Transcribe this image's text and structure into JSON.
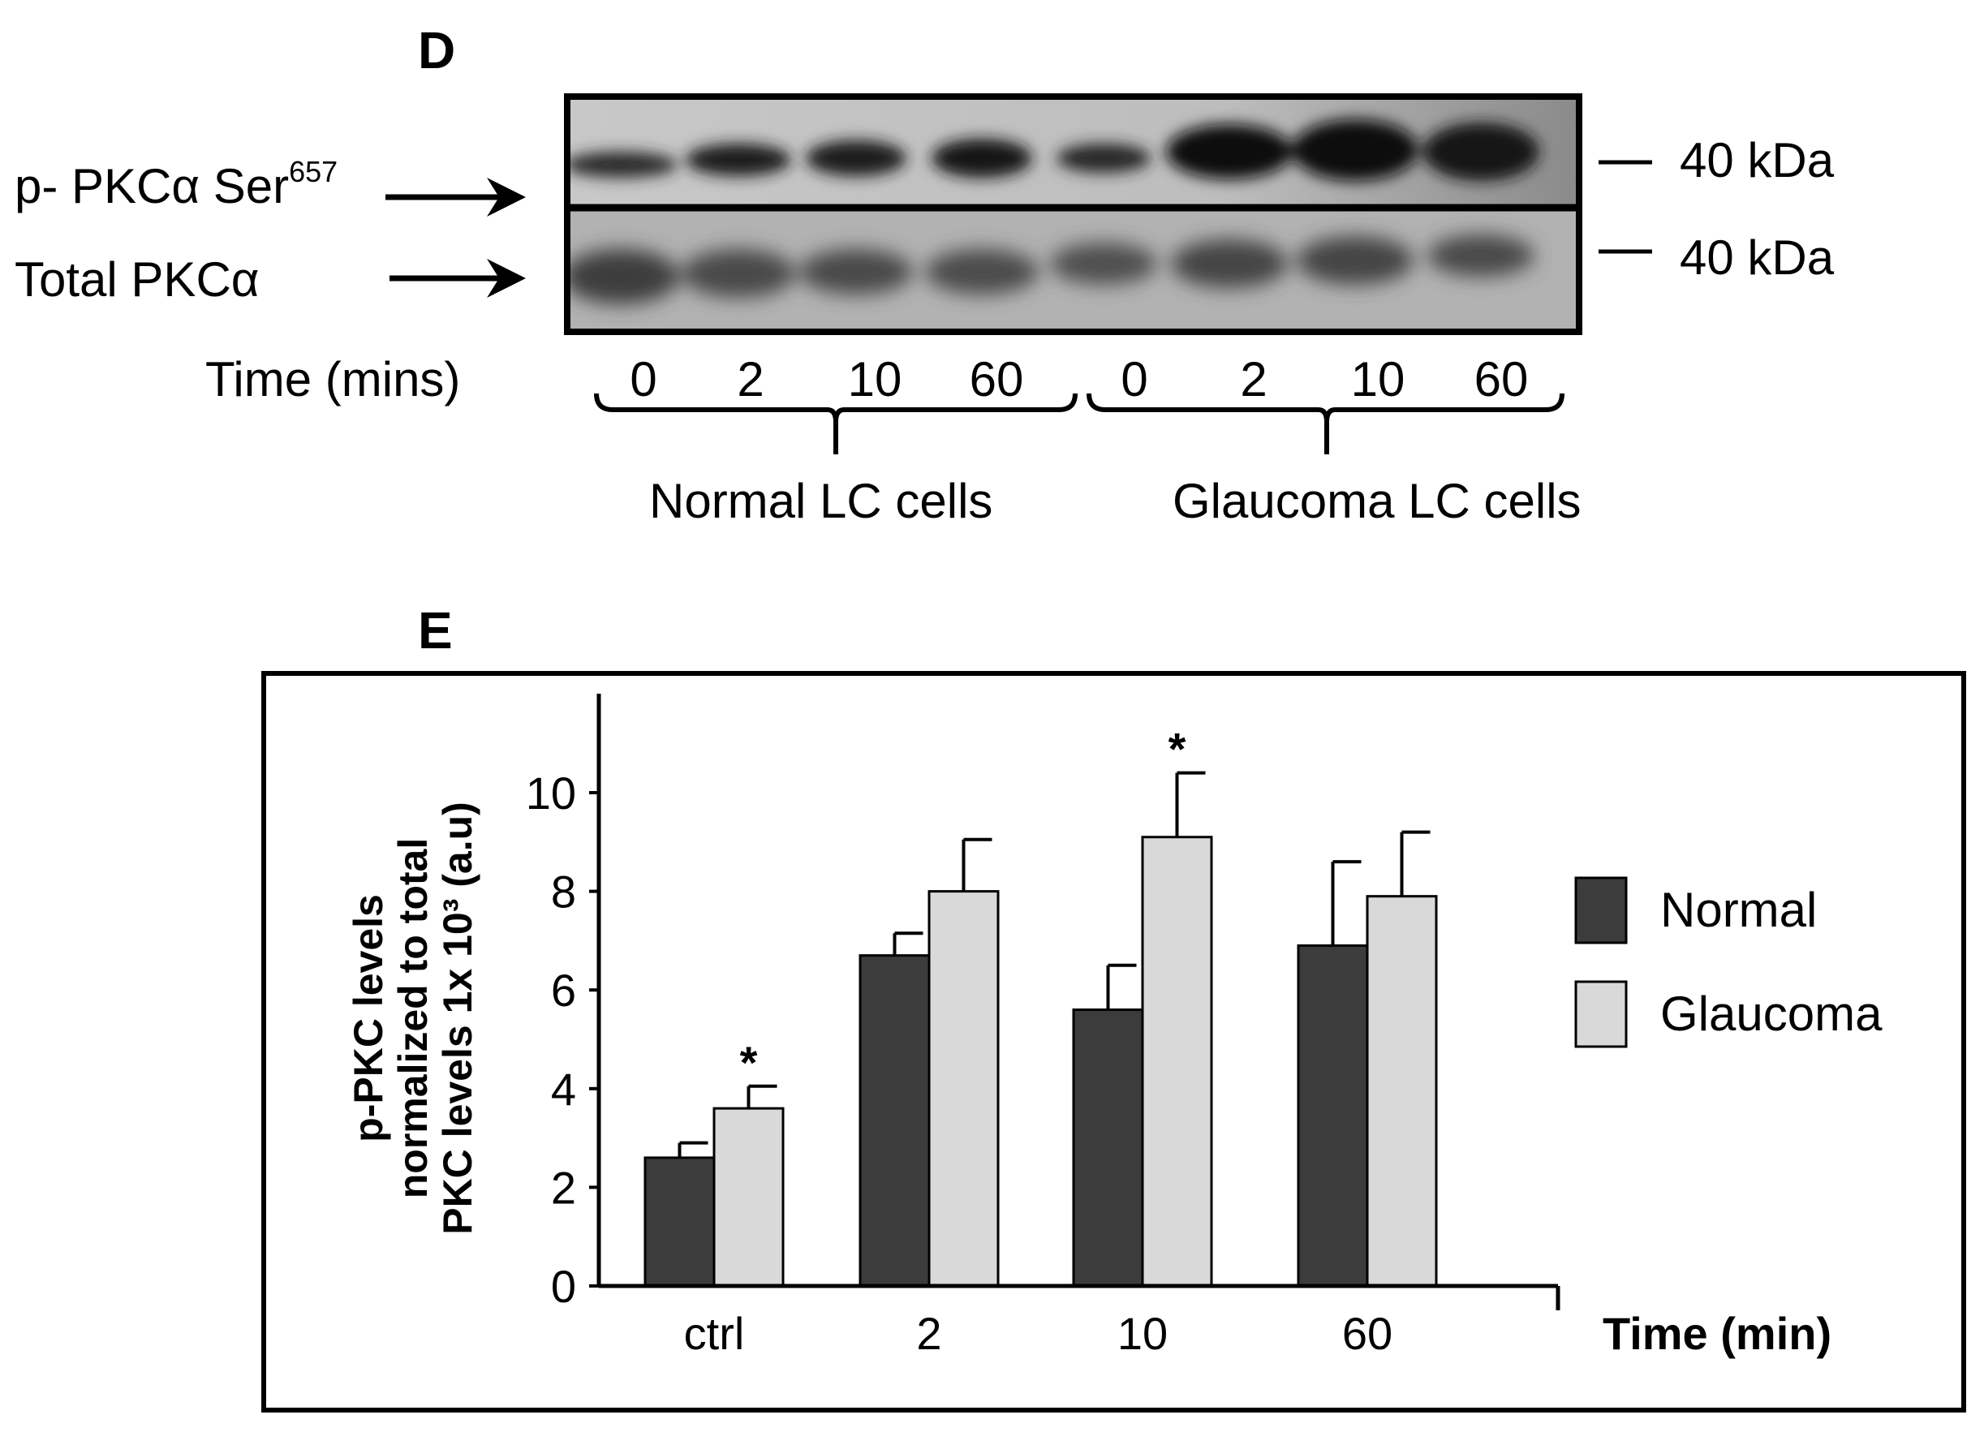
{
  "panel_d": {
    "letter": "D",
    "label_phospho": "p- PKCα Ser",
    "label_phospho_sup": "657",
    "label_total": "Total  PKCα",
    "marker_top": "40 kDa",
    "marker_bottom": "40 kDa",
    "time_label": "Time (mins)",
    "lanes": [
      "0",
      "2",
      "10",
      "60",
      "0",
      "2",
      "10",
      "60"
    ],
    "group_normal": "Normal LC cells",
    "group_glaucoma": "Glaucoma LC cells"
  },
  "panel_e": {
    "letter": "E"
  },
  "chart_data": {
    "type": "bar",
    "categories": [
      "ctrl",
      "2",
      "10",
      "60"
    ],
    "series": [
      {
        "name": "Normal",
        "color": "#3c3c3c",
        "values": [
          2.6,
          6.7,
          5.6,
          6.9
        ],
        "errors": [
          0.3,
          0.45,
          0.9,
          1.7
        ]
      },
      {
        "name": "Glaucoma",
        "color": "#d9d9d9",
        "values": [
          3.6,
          8.0,
          9.1,
          7.9
        ],
        "errors": [
          0.45,
          1.05,
          1.3,
          1.3
        ]
      }
    ],
    "significance": [
      "*",
      "",
      "*",
      ""
    ],
    "ylabel_lines": [
      "p-PKC levels",
      "normalized to total",
      "PKC levels 1x 10³ (a.u)"
    ],
    "xlabel": "Time  (min)",
    "ylim": [
      0,
      12
    ],
    "yticks": [
      0,
      2,
      4,
      6,
      8,
      10
    ],
    "legend_position": "right"
  }
}
